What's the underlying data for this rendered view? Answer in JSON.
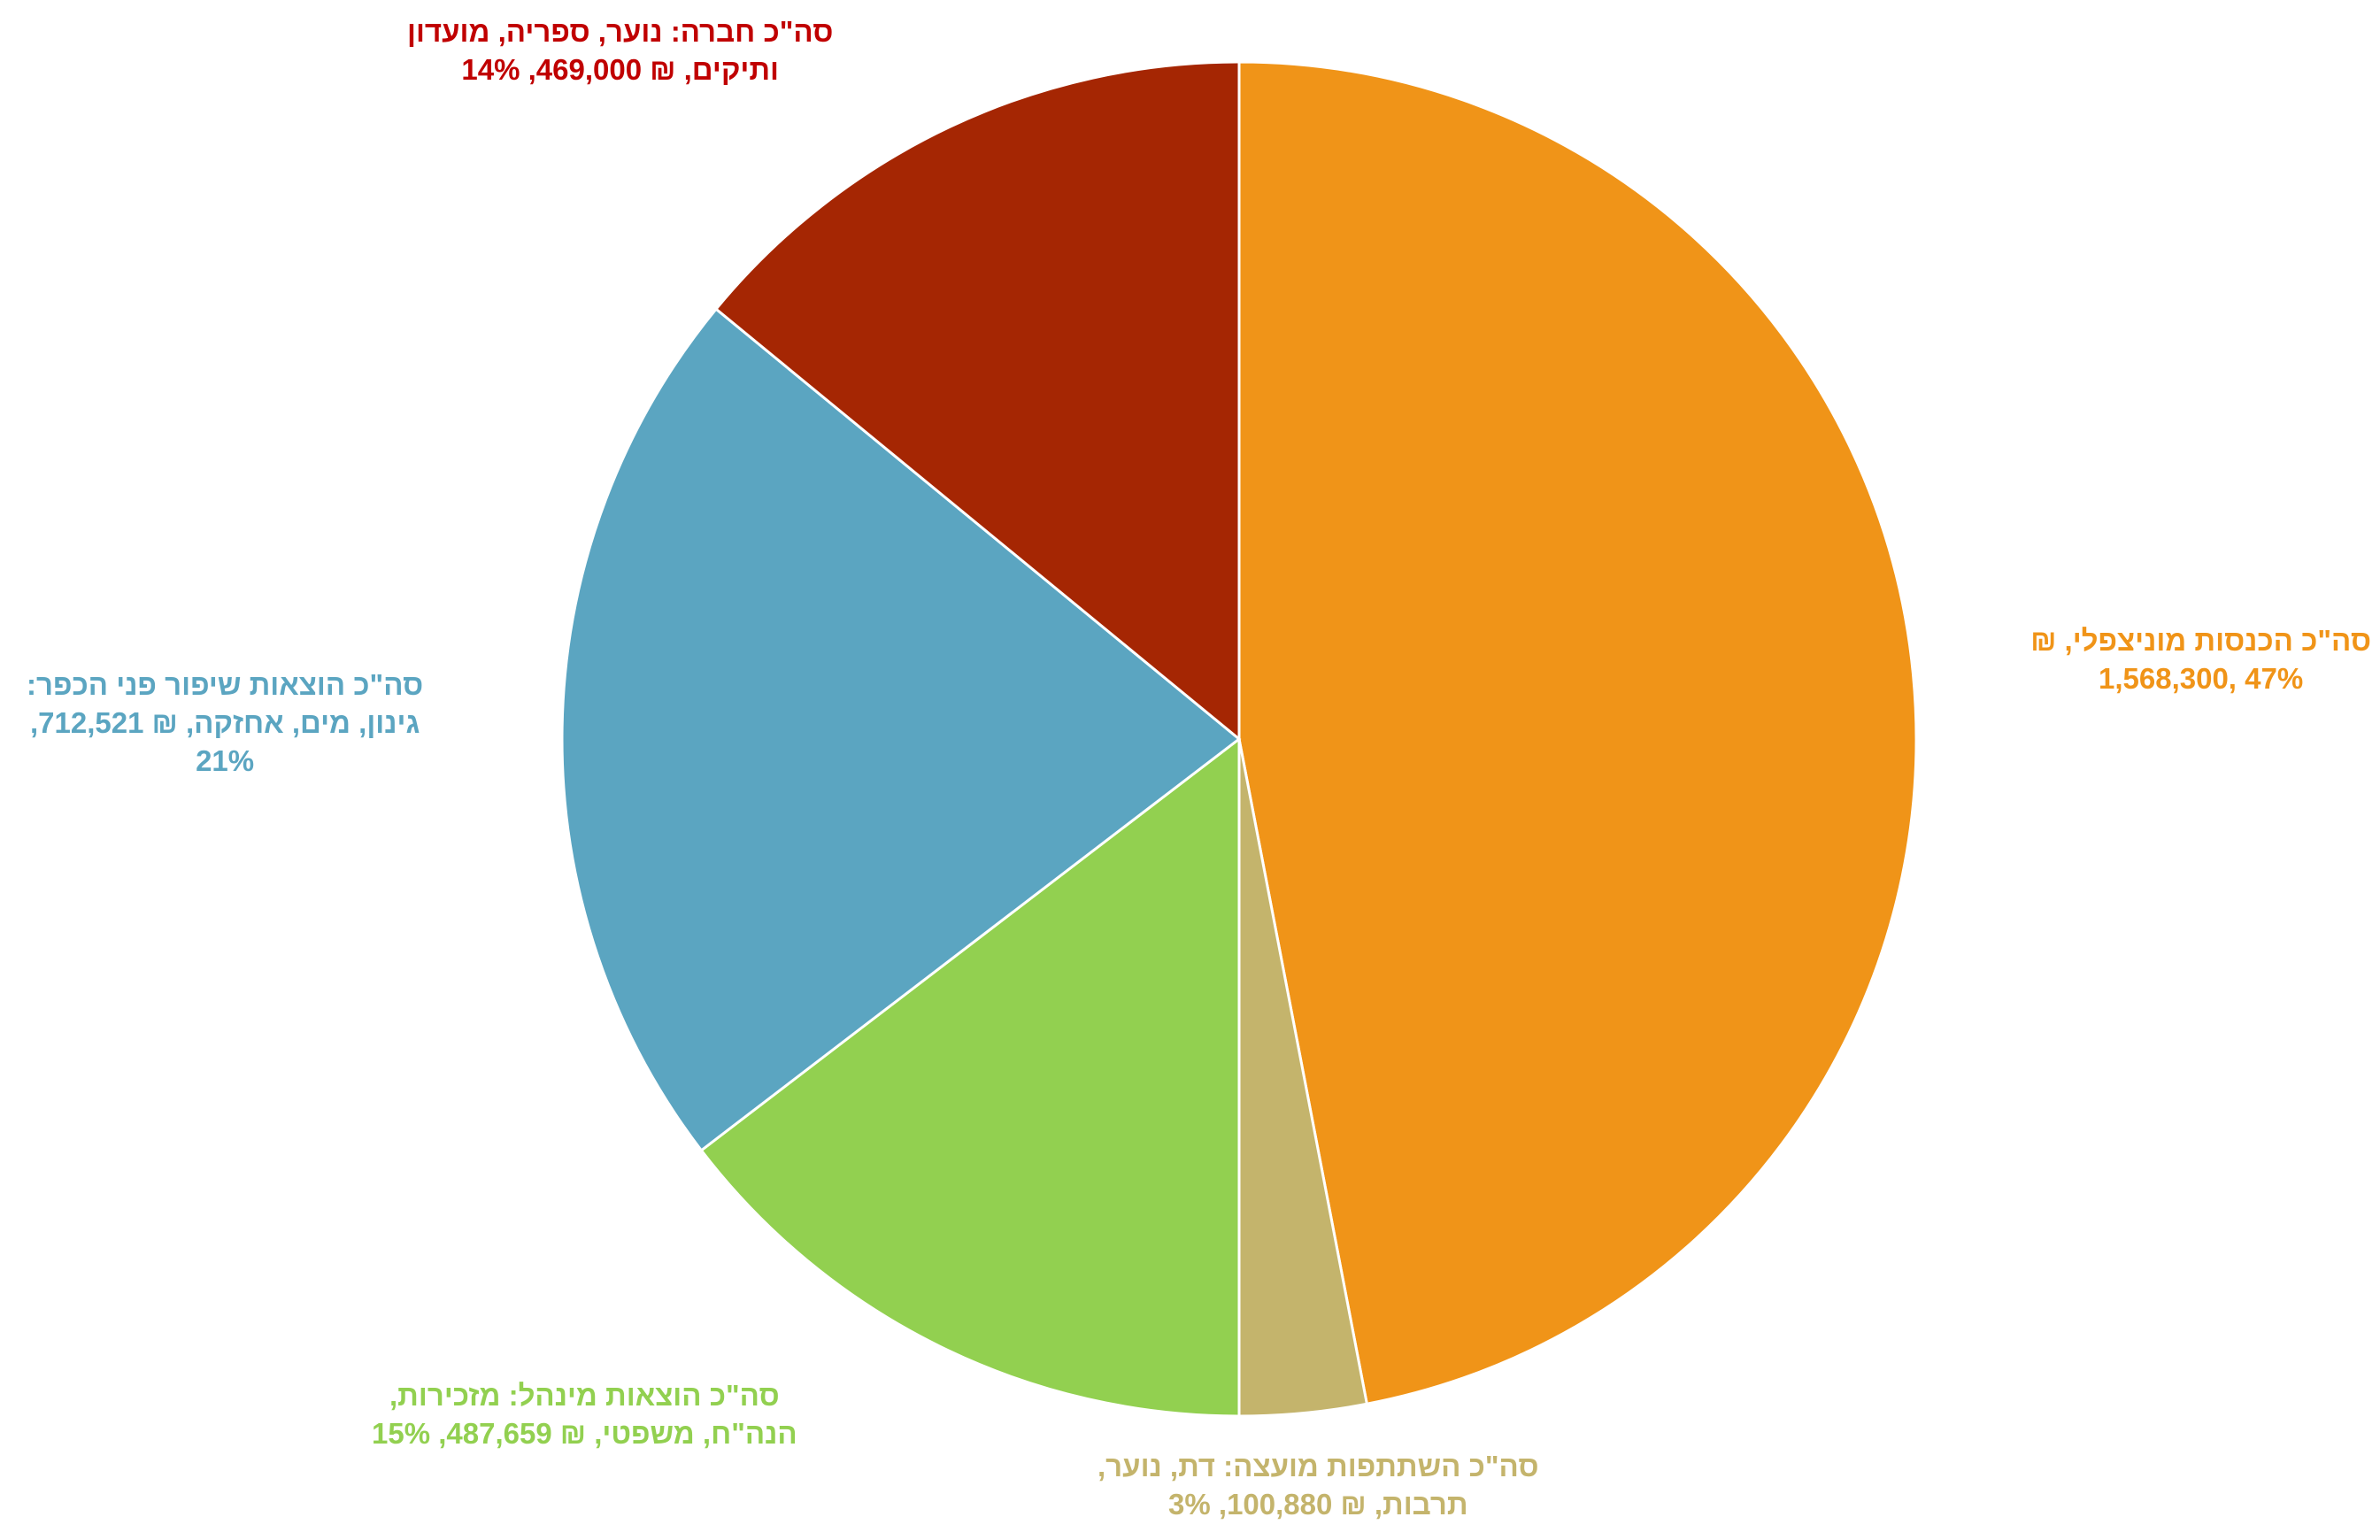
{
  "chart_data": {
    "type": "pie",
    "start_angle_deg": 0,
    "direction": "clockwise",
    "slices": [
      {
        "value": 1568300,
        "percent": 47,
        "color": "#F09418",
        "label_lines": [
          "סה\"כ הכנסות מוניצפלי, ₪",
          "1,568,300, 47%"
        ]
      },
      {
        "value": 100880,
        "percent": 3,
        "color": "#C4B46C",
        "label_lines": [
          "סה\"כ השתתפות מועצה: דת, נוער,",
          "תרבות, ₪ 100,880, 3%"
        ]
      },
      {
        "value": 487659,
        "percent": 15,
        "color": "#92D050",
        "label_lines": [
          "סה\"כ הוצאות מינהל: מזכירות,",
          "הנה\"ח, משפטי, ₪ 487,659, 15%"
        ]
      },
      {
        "value": 712521,
        "percent": 21,
        "color": "#5BA5C1",
        "label_lines": [
          "סה\"כ הוצאות שיפור פני הכפר:",
          "גינון, מים, אחזקה, ₪ 712,521,",
          "21%"
        ]
      },
      {
        "value": 469000,
        "percent": 14,
        "color": "#A52603",
        "label_lines": [
          "סה\"כ חברה: נוער, ספריה, מועדון",
          "ותיקים, ₪ 469,000, 14%"
        ]
      }
    ]
  }
}
